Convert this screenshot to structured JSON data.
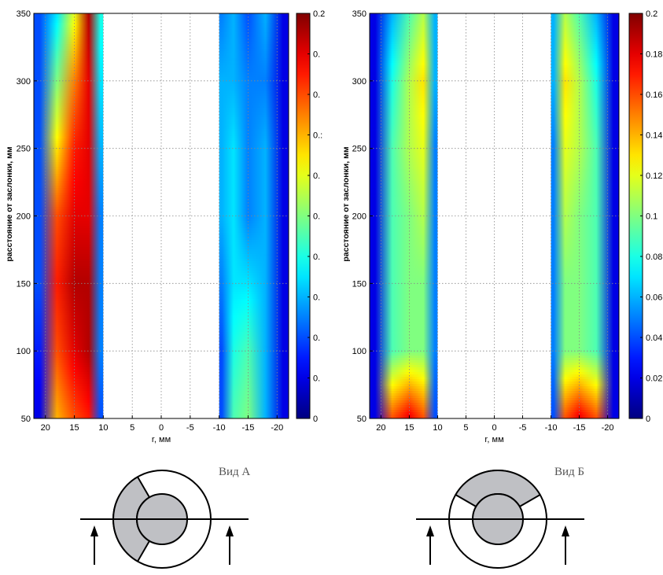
{
  "chart_data": [
    {
      "type": "heatmap",
      "title": "",
      "xlabel": "r, мм",
      "ylabel": "расстояние от заслонки, мм",
      "x_ticks": [
        "20",
        "15",
        "10",
        "5",
        "0",
        "-5",
        "-10",
        "-15",
        "-20"
      ],
      "y_ticks": [
        "50",
        "100",
        "150",
        "200",
        "250",
        "300",
        "350"
      ],
      "xlim": [
        22,
        -22
      ],
      "ylim": [
        50,
        350
      ],
      "grid": true,
      "colormap": "jet",
      "colorbar_ticks": [
        "0",
        "0.",
        "0.",
        "0.",
        "0.",
        "0.",
        "0.",
        "0.:",
        "0.",
        "0.",
        "0.2"
      ],
      "colorbar_range": [
        0,
        0.2
      ],
      "view_label": "Вид А",
      "columns_r": [
        21,
        18,
        15,
        12.5,
        10.5,
        -10.5,
        -12.5,
        -15,
        -18,
        -21
      ],
      "rows_y": [
        50,
        100,
        150,
        200,
        250,
        300,
        350
      ],
      "values": [
        [
          0.02,
          0.14,
          0.16,
          0.17,
          0.04,
          0.04,
          0.09,
          0.1,
          0.06,
          0.02
        ],
        [
          0.03,
          0.16,
          0.18,
          0.19,
          0.05,
          0.04,
          0.08,
          0.09,
          0.06,
          0.02
        ],
        [
          0.04,
          0.17,
          0.19,
          0.19,
          0.05,
          0.05,
          0.07,
          0.07,
          0.06,
          0.02
        ],
        [
          0.04,
          0.16,
          0.18,
          0.18,
          0.05,
          0.06,
          0.07,
          0.05,
          0.06,
          0.02
        ],
        [
          0.04,
          0.13,
          0.17,
          0.18,
          0.06,
          0.06,
          0.07,
          0.05,
          0.06,
          0.02
        ],
        [
          0.04,
          0.1,
          0.15,
          0.18,
          0.07,
          0.06,
          0.06,
          0.05,
          0.05,
          0.02
        ],
        [
          0.04,
          0.07,
          0.12,
          0.19,
          0.08,
          0.05,
          0.06,
          0.04,
          0.06,
          0.02
        ]
      ]
    },
    {
      "type": "heatmap",
      "title": "",
      "xlabel": "r, мм",
      "ylabel": "расстояние от заслонки, мм",
      "x_ticks": [
        "20",
        "15",
        "10",
        "5",
        "0",
        "-5",
        "-10",
        "-15",
        "-20"
      ],
      "y_ticks": [
        "50",
        "100",
        "150",
        "200",
        "250",
        "300",
        "350"
      ],
      "xlim": [
        22,
        -22
      ],
      "ylim": [
        50,
        350
      ],
      "grid": true,
      "colormap": "jet",
      "colorbar_ticks": [
        "0",
        "0.02",
        "0.04",
        "0.06",
        "0.08",
        "0.1",
        "0.12",
        "0.14",
        "0.16",
        "0.18",
        "0.2"
      ],
      "colorbar_range": [
        0,
        0.2
      ],
      "view_label": "Вид Б",
      "columns_r": [
        21,
        18,
        15,
        12.5,
        10.5,
        -10.5,
        -12.5,
        -15,
        -18,
        -21
      ],
      "rows_y": [
        50,
        100,
        150,
        200,
        250,
        300,
        350
      ],
      "values": [
        [
          0.02,
          0.16,
          0.18,
          0.16,
          0.04,
          0.04,
          0.16,
          0.18,
          0.16,
          0.02
        ],
        [
          0.02,
          0.09,
          0.1,
          0.1,
          0.05,
          0.05,
          0.1,
          0.1,
          0.09,
          0.02
        ],
        [
          0.02,
          0.09,
          0.1,
          0.1,
          0.05,
          0.05,
          0.1,
          0.1,
          0.09,
          0.02
        ],
        [
          0.02,
          0.09,
          0.1,
          0.11,
          0.05,
          0.05,
          0.11,
          0.1,
          0.09,
          0.02
        ],
        [
          0.02,
          0.09,
          0.11,
          0.12,
          0.05,
          0.05,
          0.12,
          0.11,
          0.09,
          0.02
        ],
        [
          0.02,
          0.08,
          0.11,
          0.13,
          0.06,
          0.06,
          0.13,
          0.11,
          0.08,
          0.02
        ],
        [
          0.02,
          0.06,
          0.09,
          0.11,
          0.06,
          0.06,
          0.11,
          0.09,
          0.06,
          0.02
        ]
      ]
    }
  ]
}
